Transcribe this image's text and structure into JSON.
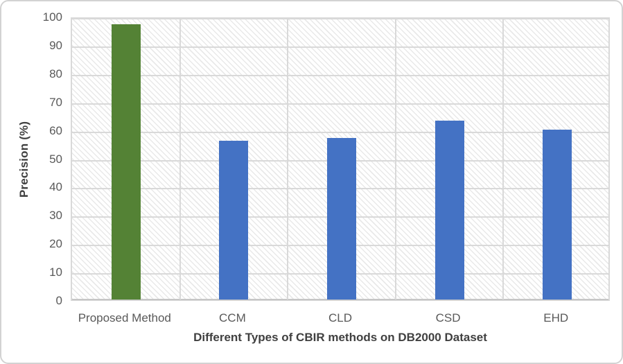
{
  "chart_data": {
    "type": "bar",
    "title": "",
    "categories": [
      "Proposed Method",
      "CCM",
      "CLD",
      "CSD",
      "EHD"
    ],
    "values": [
      97,
      56,
      57,
      63,
      60
    ],
    "series": [
      {
        "name": "Precision",
        "values": [
          97,
          56,
          57,
          63,
          60
        ]
      }
    ],
    "bar_colors": [
      "#548235",
      "#4472C4",
      "#4472C4",
      "#4472C4",
      "#4472C4"
    ],
    "xlabel": "Different Types of CBIR methods on DB2000 Dataset",
    "ylabel": "Precision (%)",
    "ylim": [
      0,
      100
    ],
    "ytick_step": 10,
    "yticks": [
      0,
      10,
      20,
      30,
      40,
      50,
      60,
      70,
      80,
      90,
      100
    ],
    "grid": "horizontal gridlines every 10 units plus vertical gridlines at category boundaries",
    "legend_position": "none",
    "plot_background": "white with light gray diagonal hatch pattern",
    "colors": {
      "highlight_bar_green": "#548235",
      "default_bar_blue": "#4472C4",
      "gridline": "#d9d9d9",
      "axis_line": "#c6c6c6",
      "tick_label_text": "#595959",
      "axis_title_text": "#404040",
      "hatch_line": "#e9e9e9",
      "frame_border": "#d2d2d2"
    }
  }
}
